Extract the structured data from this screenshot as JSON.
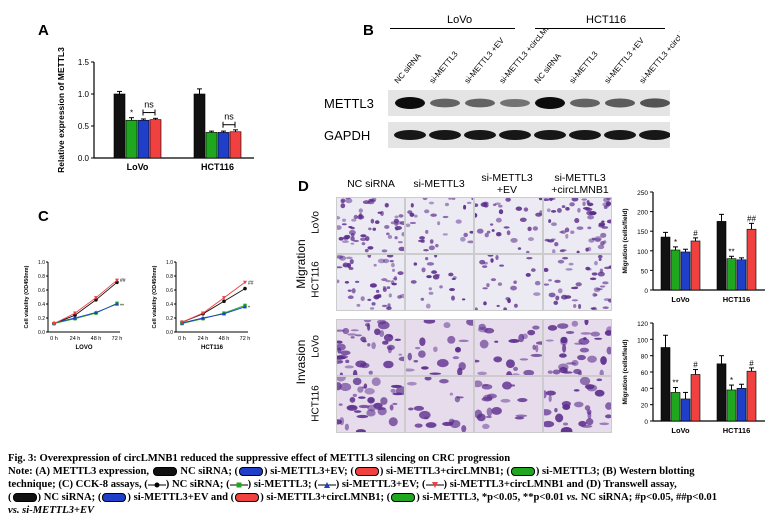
{
  "colors": {
    "black": "#111111",
    "blue": "#1f3fc8",
    "red": "#f04040",
    "green": "#1fa81f",
    "purple": "#5b2c8c"
  },
  "panel_a": {
    "letter": "A",
    "ylabel": "Relative expression of METTL3",
    "groups": [
      "LoVo",
      "HCT116"
    ],
    "ns_label": "ns",
    "star": "*",
    "chart_data": {
      "type": "bar",
      "categories": [
        "LoVo",
        "HCT116"
      ],
      "series": [
        {
          "color": "black",
          "values": [
            1.0,
            1.0
          ]
        },
        {
          "color": "green",
          "values": [
            0.59,
            0.4
          ]
        },
        {
          "color": "blue",
          "values": [
            0.59,
            0.4
          ]
        },
        {
          "color": "red",
          "values": [
            0.6,
            0.41
          ]
        }
      ],
      "errors": [
        [
          0.04,
          0.08
        ],
        [
          0.04,
          0.02
        ],
        [
          0.02,
          0.02
        ],
        [
          0.02,
          0.03
        ]
      ],
      "ylim": [
        0,
        1.5
      ],
      "yticks": [
        "0.0",
        "0.5",
        "1.0",
        "1.5"
      ]
    }
  },
  "panel_b": {
    "letter": "B",
    "groups": [
      "LoVo",
      "HCT116"
    ],
    "lanes": [
      "NC siRNA",
      "si-METTL3",
      "si-METTL3 +EV",
      "si-METTL3 +circLMNB1",
      "NC siRNA",
      "si-METTL3",
      "si-METTL3 +EV",
      "si-METTL3 +circLMNB1"
    ],
    "rows": [
      "METTL3",
      "GAPDH"
    ]
  },
  "panel_c": {
    "letter": "C",
    "ylabel": "Cell viability (OD450nm)",
    "xticks": [
      "0 h",
      "24 h",
      "48 h",
      "72 h"
    ],
    "sig": [
      "##",
      "**",
      "##",
      "*"
    ],
    "charts": [
      {
        "xlabel": "LOVO",
        "yticks": [
          "0.0",
          "0.2",
          "0.4",
          "0.6",
          "0.8",
          "1.0"
        ],
        "chart_data": {
          "type": "line",
          "x": [
            "0 h",
            "24 h",
            "48 h",
            "72 h"
          ],
          "ylim": [
            0,
            1.0
          ],
          "series": [
            {
              "marker": "black-circle",
              "values": [
                0.12,
                0.24,
                0.46,
                0.71
              ]
            },
            {
              "marker": "green-square",
              "values": [
                0.12,
                0.19,
                0.27,
                0.41
              ]
            },
            {
              "marker": "blue-triangle",
              "values": [
                0.13,
                0.2,
                0.28,
                0.4
              ]
            },
            {
              "marker": "red-inverted-triangle",
              "values": [
                0.12,
                0.27,
                0.49,
                0.74
              ]
            }
          ]
        }
      },
      {
        "xlabel": "HCT116",
        "yticks": [
          "0.0",
          "0.2",
          "0.4",
          "0.6",
          "0.8",
          "1.0"
        ],
        "chart_data": {
          "type": "line",
          "x": [
            "0 h",
            "24 h",
            "48 h",
            "72 h"
          ],
          "ylim": [
            0,
            1.0
          ],
          "series": [
            {
              "marker": "black-circle",
              "values": [
                0.14,
                0.26,
                0.44,
                0.62
              ]
            },
            {
              "marker": "green-square",
              "values": [
                0.12,
                0.19,
                0.27,
                0.38
              ]
            },
            {
              "marker": "blue-triangle",
              "values": [
                0.13,
                0.2,
                0.26,
                0.36
              ]
            },
            {
              "marker": "red-inverted-triangle",
              "values": [
                0.14,
                0.27,
                0.49,
                0.71
              ]
            }
          ]
        }
      }
    ]
  },
  "panel_d": {
    "letter": "D",
    "columns": [
      "NC siRNA",
      "si-METTL3",
      "si-METTL3 +EV",
      "si-METTL3 +circLMNB1"
    ],
    "sections": [
      "Migration",
      "Invasion"
    ],
    "row_labels": [
      "LoVo",
      "HCT116",
      "LoVo",
      "HCT116"
    ],
    "charts": [
      {
        "ylabel": "Migration (cells/field)",
        "groups": [
          "LoVo",
          "HCT116"
        ],
        "yticks": [
          "0",
          "50",
          "100",
          "150",
          "200",
          "250"
        ],
        "marks": [
          [
            "*",
            "",
            "#"
          ],
          [
            "**",
            "",
            "##"
          ]
        ],
        "chart_data": {
          "type": "bar",
          "categories": [
            "LoVo",
            "HCT116"
          ],
          "ylim": [
            0,
            250
          ],
          "series": [
            {
              "color": "black",
              "values": [
                135,
                175
              ]
            },
            {
              "color": "green",
              "values": [
                102,
                80
              ]
            },
            {
              "color": "blue",
              "values": [
                97,
                77
              ]
            },
            {
              "color": "red",
              "values": [
                125,
                155
              ]
            }
          ],
          "errors": [
            [
              12,
              18
            ],
            [
              8,
              6
            ],
            [
              7,
              5
            ],
            [
              8,
              15
            ]
          ]
        }
      },
      {
        "ylabel": "Migration (cells/field)",
        "groups": [
          "LoVo",
          "HCT116"
        ],
        "yticks": [
          "0",
          "20",
          "40",
          "60",
          "80",
          "100",
          "120"
        ],
        "marks": [
          [
            "**",
            "",
            "#"
          ],
          [
            "*",
            "",
            "#"
          ]
        ],
        "chart_data": {
          "type": "bar",
          "categories": [
            "LoVo",
            "HCT116"
          ],
          "ylim": [
            0,
            120
          ],
          "series": [
            {
              "color": "black",
              "values": [
                90,
                70
              ]
            },
            {
              "color": "green",
              "values": [
                35,
                38
              ]
            },
            {
              "color": "blue",
              "values": [
                27,
                40
              ]
            },
            {
              "color": "red",
              "values": [
                57,
                61
              ]
            }
          ],
          "errors": [
            [
              15,
              10
            ],
            [
              6,
              6
            ],
            [
              8,
              5
            ],
            [
              6,
              4
            ]
          ]
        }
      }
    ]
  },
  "caption": {
    "title": "Fig. 3: Overexpression of circLMNB1 reduced the suppressive effect of METTL3 silencing on CRC progression",
    "line1": "Note: (A) METTL3 expression, ",
    "l1a": " NC siRNA; (",
    "l1b": ") si-METTL3+EV; (",
    "l1c": ") si-METTL3+circLMNB1; (",
    "l1d": ") si-METTL3; (B) Western blotting",
    "line2": "technique; (C) CCK-8 assays, (",
    "l2a": ") NC siRNA; (",
    "l2b": ") si-METTL3; (",
    "l2c": ") si-METTL3+EV; (",
    "l2d": ") si-METTL3+circLMNB1 and (D) Transwell assay,",
    "line3a": "(",
    "l3a": ") NC siRNA; (",
    "l3b": ") si-METTL3+EV and (",
    "l3c": ") si-METTL3+circLMNB1; (",
    "l3d": ") si-METTL3, *p<0.05, **p<0.01 ",
    "vs": "vs.",
    "l3e": " NC siRNA; ",
    "l3f": "#p<0.05, ##p<0.01",
    "line4": "vs. si-METTL3+EV"
  }
}
